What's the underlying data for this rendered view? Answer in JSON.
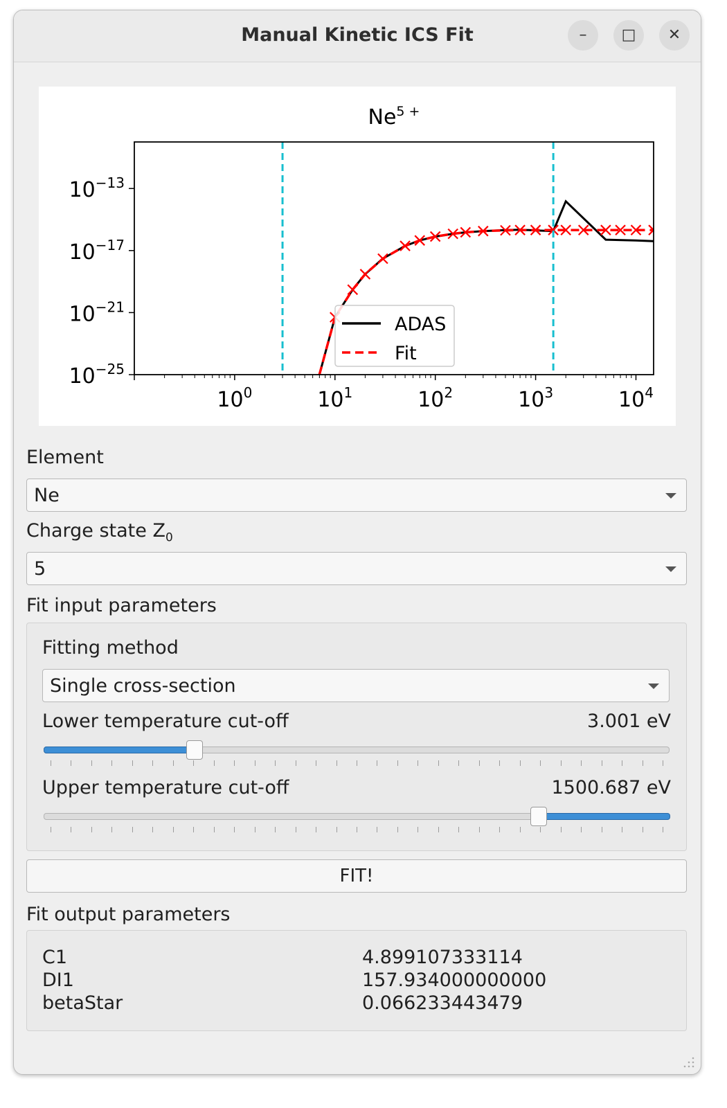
{
  "window": {
    "title": "Manual Kinetic ICS Fit"
  },
  "titlebar_buttons": {
    "minimize": "–",
    "maximize": "□",
    "close": "✕"
  },
  "chart_data": {
    "type": "line",
    "title_base": "Ne",
    "title_sup": "5 +",
    "xscale": "log",
    "yscale": "log",
    "xlim": [
      0.1,
      15000
    ],
    "ylim": [
      1e-25,
      1e-10
    ],
    "x_tick_labels": [
      {
        "base": "10",
        "exp": "0",
        "value": 1
      },
      {
        "base": "10",
        "exp": "1",
        "value": 10
      },
      {
        "base": "10",
        "exp": "2",
        "value": 100
      },
      {
        "base": "10",
        "exp": "3",
        "value": 1000
      },
      {
        "base": "10",
        "exp": "4",
        "value": 10000
      }
    ],
    "y_tick_labels": [
      {
        "base": "10",
        "exp": "−13",
        "value": 1e-13
      },
      {
        "base": "10",
        "exp": "−17",
        "value": 1e-17
      },
      {
        "base": "10",
        "exp": "−21",
        "value": 1e-21
      },
      {
        "base": "10",
        "exp": "−25",
        "value": 1e-25
      }
    ],
    "vlines": [
      {
        "x": 3.001,
        "color": "#17becf"
      },
      {
        "x": 1500.687,
        "color": "#17becf"
      }
    ],
    "legend": {
      "placement": "lower-center",
      "entries": [
        "ADAS",
        "Fit"
      ]
    },
    "series": [
      {
        "name": "ADAS",
        "color": "#000000",
        "style": "solid",
        "x": [
          7,
          10,
          15,
          20,
          30,
          50,
          70,
          100,
          150,
          200,
          300,
          500,
          700,
          1000,
          1500,
          2000,
          3000,
          5000,
          10000,
          15000
        ],
        "y": [
          1e-25,
          5e-22,
          3e-20,
          3e-19,
          3e-18,
          2e-17,
          4.5e-17,
          8e-17,
          1.2e-16,
          1.5e-16,
          1.8e-16,
          2.1e-16,
          2.2e-16,
          2e-16,
          1.8e-16,
          1.5e-14,
          1.2e-15,
          5e-17,
          4.5e-17,
          4e-17
        ]
      },
      {
        "name": "Fit",
        "color": "#ff0000",
        "style": "dashed",
        "x": [
          7,
          10,
          15,
          20,
          30,
          50,
          70,
          100,
          150,
          200,
          300,
          500,
          700,
          1000,
          1500,
          2000,
          3000,
          5000,
          7000,
          10000,
          15000
        ],
        "y": [
          1e-25,
          5e-22,
          3e-20,
          3e-19,
          3e-18,
          2e-17,
          4.5e-17,
          8e-17,
          1.2e-16,
          1.5e-16,
          1.8e-16,
          2e-16,
          2.1e-16,
          2.1e-16,
          2.1e-16,
          2.1e-16,
          2.1e-16,
          2.1e-16,
          2.1e-16,
          2.1e-16,
          2.1e-16
        ]
      }
    ],
    "fit_markers": {
      "color": "#ff0000",
      "x": [
        10,
        15,
        20,
        30,
        50,
        70,
        100,
        150,
        200,
        300,
        500,
        700,
        1000,
        1500,
        2000,
        3000,
        5000,
        7000,
        10000,
        15000
      ],
      "y": [
        5e-22,
        3e-20,
        3e-19,
        3e-18,
        2e-17,
        4.5e-17,
        8e-17,
        1.2e-16,
        1.5e-16,
        1.8e-16,
        2e-16,
        2.1e-16,
        2.1e-16,
        2.1e-16,
        2.1e-16,
        2.1e-16,
        2.1e-16,
        2.1e-16,
        2.1e-16,
        2.1e-16
      ]
    }
  },
  "element": {
    "label": "Element",
    "value": "Ne"
  },
  "charge": {
    "label": "Charge state Z",
    "sub": "0",
    "value": "5"
  },
  "fit_input": {
    "label": "Fit input parameters",
    "method_label": "Fitting method",
    "method_value": "Single cross-section",
    "lower": {
      "label": "Lower temperature cut-off",
      "value_text": "3.001 eV",
      "fraction": 0.24
    },
    "upper": {
      "label": "Upper temperature cut-off",
      "value_text": "1500.687 eV",
      "fraction": 0.79
    }
  },
  "fit_button": "FIT!",
  "fit_output": {
    "label": "Fit output parameters",
    "rows": [
      {
        "name": "C1",
        "value": "4.899107333114"
      },
      {
        "name": "DI1",
        "value": "157.934000000000"
      },
      {
        "name": "betaStar",
        "value": "0.066233443479"
      }
    ]
  }
}
